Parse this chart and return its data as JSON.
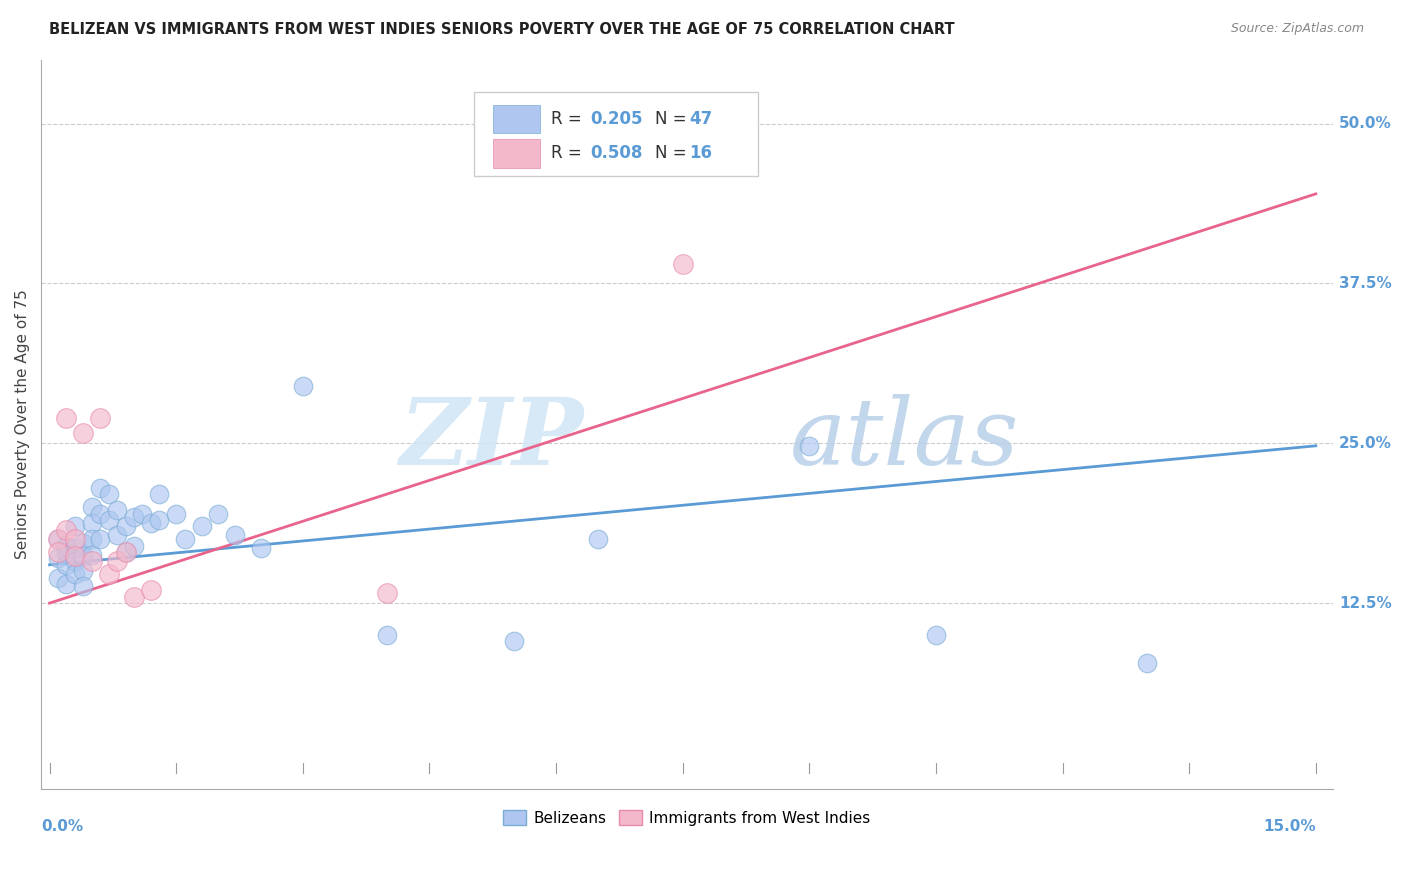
{
  "title": "BELIZEAN VS IMMIGRANTS FROM WEST INDIES SENIORS POVERTY OVER THE AGE OF 75 CORRELATION CHART",
  "source": "Source: ZipAtlas.com",
  "ylabel": "Seniors Poverty Over the Age of 75",
  "ytick_labels": [
    "12.5%",
    "25.0%",
    "37.5%",
    "50.0%"
  ],
  "ytick_values": [
    0.125,
    0.25,
    0.375,
    0.5
  ],
  "xlim": [
    0.0,
    0.15
  ],
  "ylim": [
    0.0,
    0.55
  ],
  "watermark_zip": "ZIP",
  "watermark_atlas": "atlas",
  "legend_color1": "#aec6f0",
  "legend_color2": "#f4b8cb",
  "line_color1": "#5b9bd5",
  "line_color2": "#e8648c",
  "scatter_color1": "#aec6f0",
  "scatter_color2": "#f4b8cb",
  "scatter_edge1": "#7aadd6",
  "scatter_edge2": "#e88aaa",
  "R1": "0.205",
  "N1": "47",
  "R2": "0.508",
  "N2": "16",
  "belizeans_x": [
    0.001,
    0.001,
    0.001,
    0.002,
    0.002,
    0.002,
    0.002,
    0.003,
    0.003,
    0.003,
    0.003,
    0.004,
    0.004,
    0.004,
    0.004,
    0.005,
    0.005,
    0.005,
    0.005,
    0.006,
    0.006,
    0.006,
    0.007,
    0.007,
    0.008,
    0.008,
    0.009,
    0.009,
    0.01,
    0.01,
    0.011,
    0.012,
    0.013,
    0.013,
    0.015,
    0.016,
    0.018,
    0.02,
    0.022,
    0.025,
    0.03,
    0.04,
    0.055,
    0.065,
    0.09,
    0.105,
    0.13
  ],
  "belizeans_y": [
    0.175,
    0.16,
    0.145,
    0.17,
    0.165,
    0.155,
    0.14,
    0.168,
    0.158,
    0.148,
    0.185,
    0.172,
    0.162,
    0.15,
    0.138,
    0.2,
    0.188,
    0.175,
    0.163,
    0.215,
    0.195,
    0.175,
    0.21,
    0.19,
    0.198,
    0.178,
    0.185,
    0.165,
    0.192,
    0.17,
    0.195,
    0.188,
    0.21,
    0.19,
    0.195,
    0.175,
    0.185,
    0.195,
    0.178,
    0.168,
    0.295,
    0.1,
    0.095,
    0.175,
    0.248,
    0.1,
    0.078
  ],
  "west_indies_x": [
    0.001,
    0.001,
    0.002,
    0.002,
    0.003,
    0.003,
    0.004,
    0.005,
    0.006,
    0.007,
    0.008,
    0.009,
    0.01,
    0.012,
    0.04,
    0.075
  ],
  "west_indies_y": [
    0.175,
    0.165,
    0.27,
    0.182,
    0.175,
    0.162,
    0.258,
    0.158,
    0.27,
    0.148,
    0.158,
    0.165,
    0.13,
    0.135,
    0.133,
    0.39
  ],
  "line1_x0": 0.0,
  "line1_y0": 0.155,
  "line1_x1": 0.15,
  "line1_y1": 0.248,
  "line2_x0": 0.0,
  "line2_y0": 0.125,
  "line2_x1": 0.15,
  "line2_y1": 0.445
}
